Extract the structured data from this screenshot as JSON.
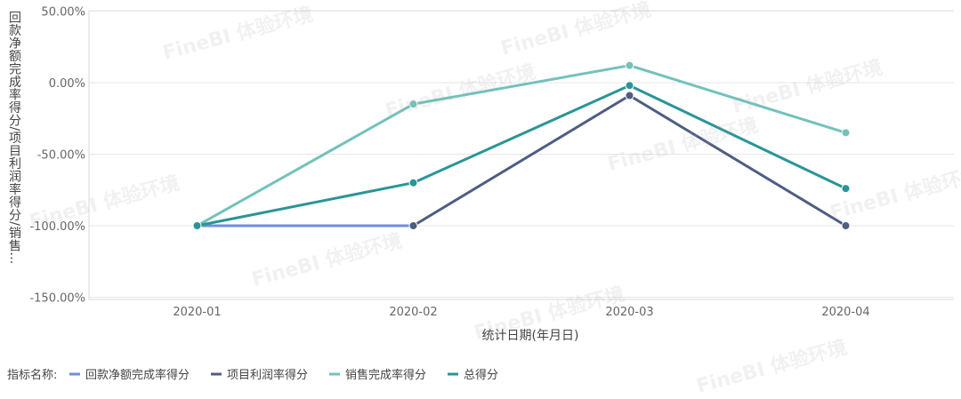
{
  "watermark": "FineBI 体验环境",
  "chart_data": {
    "type": "line",
    "title": "",
    "xlabel": "统计日期(年月日)",
    "ylabel": "回款净额完成率得分/项目利润率得分/销售…",
    "categories": [
      "2020-01",
      "2020-02",
      "2020-03",
      "2020-04"
    ],
    "y_ticks": [
      "50.00%",
      "0.00%",
      "-50.00%",
      "-100.00%",
      "-150.00%"
    ],
    "ylim": [
      -150,
      50
    ],
    "grid": true,
    "legend_position": "bottom-left",
    "legend_title": "指标名称:",
    "series": [
      {
        "name": "回款净额完成率得分",
        "color": "#6f8fd8",
        "values": [
          -100,
          -100,
          null,
          null
        ]
      },
      {
        "name": "项目利润率得分",
        "color": "#4e5d82",
        "values": [
          null,
          -100,
          -9,
          -100
        ]
      },
      {
        "name": "销售完成率得分",
        "color": "#72c2bb",
        "values": [
          -100,
          -15,
          12,
          -35
        ]
      },
      {
        "name": "总得分",
        "color": "#2a9597",
        "values": [
          -100,
          -70,
          -2,
          -74
        ]
      }
    ]
  }
}
